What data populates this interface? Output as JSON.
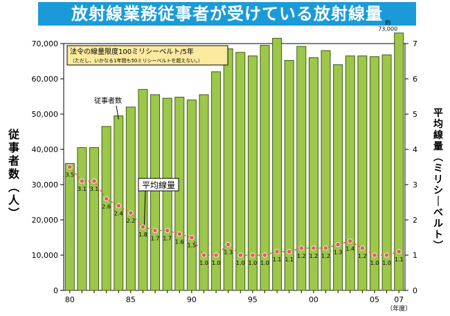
{
  "title": "放射線業務従事者が受けている放射線量",
  "note": {
    "line1": "法令の線量限度100ミリシーベルト/5年",
    "line2": "（ただし、いかなる1年間も50ミリシーベルトを超えない。）"
  },
  "labels": {
    "workers": "従事者数",
    "avg_dose": "平均線量",
    "peak_prefix": "約",
    "peak_value": "73,000",
    "year_unit": "（年度）"
  },
  "colors": {
    "banner": "#1a9bd8",
    "bar_fill": "#9cc74a",
    "bar_stroke": "#3d5a12",
    "line": "#e85a5a",
    "point": "#e85a5a",
    "note_box": "#fbeaa0"
  },
  "chart_data": {
    "type": "bar+line",
    "x": [
      1980,
      1981,
      1982,
      1983,
      1984,
      1985,
      1986,
      1987,
      1988,
      1989,
      1990,
      1991,
      1992,
      1993,
      1994,
      1995,
      1996,
      1997,
      1998,
      1999,
      2000,
      2001,
      2002,
      2003,
      2004,
      2005,
      2006,
      2007
    ],
    "x_tick_labels": [
      "80",
      "85",
      "90",
      "95",
      "00",
      "05",
      "07"
    ],
    "series": [
      {
        "name": "従事者数",
        "type": "bar",
        "axis": "left",
        "values": [
          36000,
          40500,
          40500,
          46500,
          49500,
          52000,
          57000,
          55500,
          54500,
          54800,
          54000,
          55500,
          62000,
          68500,
          67500,
          66500,
          69500,
          71500,
          65200,
          69200,
          66000,
          68000,
          64000,
          66500,
          66500,
          66300,
          66800,
          73000
        ]
      },
      {
        "name": "平均線量",
        "type": "line",
        "axis": "right",
        "values": [
          3.5,
          3.1,
          3.1,
          2.6,
          2.4,
          2.2,
          1.8,
          1.7,
          1.7,
          1.6,
          1.5,
          1.0,
          1.0,
          1.3,
          1.0,
          1.0,
          1.0,
          1.1,
          1.1,
          1.2,
          1.2,
          1.2,
          1.3,
          1.4,
          1.2,
          1.0,
          1.0,
          1.1
        ]
      }
    ],
    "ylabel_left": "従事者数（人）",
    "ylabel_right": "平均線量（ミリシーベルト）",
    "ylim_left": [
      0,
      70000
    ],
    "ylim_right": [
      0,
      7
    ],
    "left_ticks": [
      "0",
      "10,000",
      "20,000",
      "30,000",
      "40,000",
      "50,000",
      "60,000",
      "70,000"
    ],
    "right_ticks": [
      "0",
      "1",
      "2",
      "3",
      "4",
      "5",
      "6",
      "7"
    ],
    "xlabel": "（年度）",
    "grid": false
  }
}
